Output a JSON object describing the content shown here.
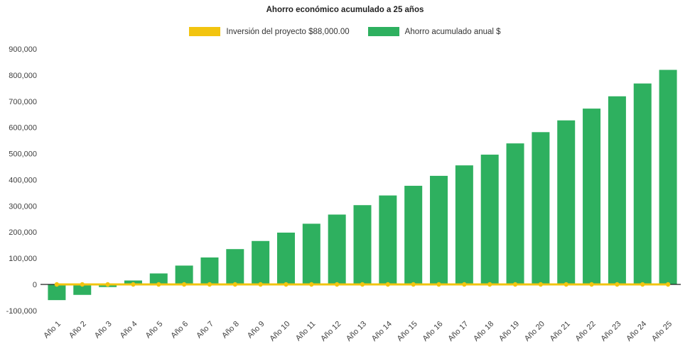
{
  "title": "Ahorro económico acumulado a 25 años",
  "legend": [
    {
      "label": "Inversión del proyecto $88,000.00",
      "color": "#F2C40F",
      "series_type": "line"
    },
    {
      "label": "Ahorro acumulado anual $",
      "color": "#2EB05F",
      "series_type": "bar"
    }
  ],
  "chart_data": {
    "type": "bar",
    "title": "Ahorro económico acumulado a 25 años",
    "categories": [
      "Año 1",
      "Año 2",
      "Año 3",
      "Año 4",
      "Año 5",
      "Año 6",
      "Año 7",
      "Año 8",
      "Año 9",
      "Año 10",
      "Año 11",
      "Año 12",
      "Año 13",
      "Año 14",
      "Año 15",
      "Año 16",
      "Año 17",
      "Año 18",
      "Año 19",
      "Año 20",
      "Año 21",
      "Año 22",
      "Año 23",
      "Año 24",
      "Año 25"
    ],
    "series": [
      {
        "name": "Ahorro acumulado anual $",
        "type": "bar",
        "color": "#2EB05F",
        "values": [
          -60000,
          -40000,
          -10000,
          15000,
          42000,
          72000,
          103000,
          135000,
          166000,
          198000,
          232000,
          267000,
          303000,
          340000,
          377000,
          415000,
          455000,
          496000,
          539000,
          582000,
          627000,
          672000,
          719000,
          768000,
          820000
        ]
      },
      {
        "name": "Inversión del proyecto $88,000.00",
        "type": "line",
        "color": "#F2C40F",
        "values": [
          0,
          0,
          0,
          0,
          0,
          0,
          0,
          0,
          0,
          0,
          0,
          0,
          0,
          0,
          0,
          0,
          0,
          0,
          0,
          0,
          0,
          0,
          0,
          0,
          0
        ]
      }
    ],
    "xlabel": "",
    "ylabel": "",
    "ylim": [
      -100000,
      900000
    ],
    "ytick_interval": 100000,
    "ytick_labels": [
      "-100,000",
      "0",
      "100,000",
      "200,000",
      "300,000",
      "400,000",
      "500,000",
      "600,000",
      "700,000",
      "800,000",
      "900,000"
    ],
    "grid": false,
    "legend_position": "top"
  }
}
